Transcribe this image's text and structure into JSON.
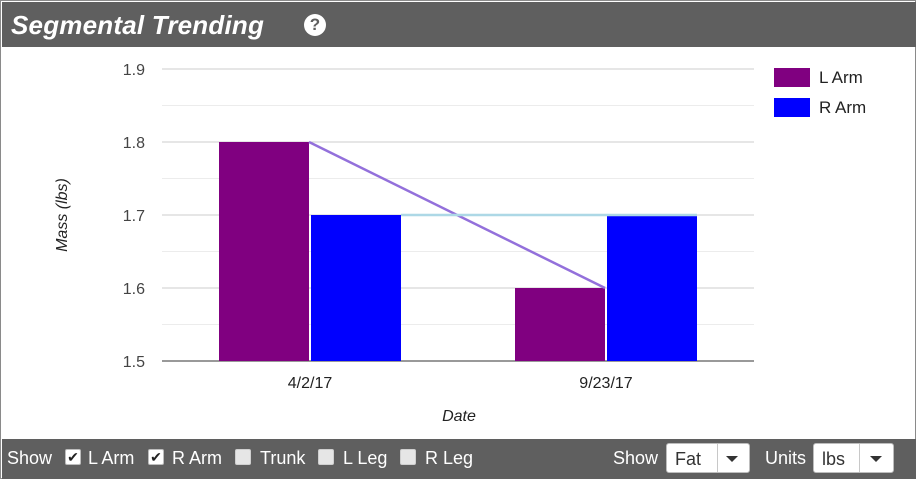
{
  "header": {
    "title": "Segmental Trending",
    "help_icon": "question-circle-icon"
  },
  "chart_data": {
    "type": "bar",
    "title": "",
    "xlabel": "Date",
    "ylabel": "Mass (lbs)",
    "categories": [
      "4/2/17",
      "9/23/17"
    ],
    "ylim": [
      1.5,
      1.9
    ],
    "yticks": [
      1.5,
      1.6,
      1.7,
      1.8,
      1.9
    ],
    "ytick_labels": [
      "1.5",
      "1.6",
      "1.7",
      "1.8",
      "1.9"
    ],
    "grid": true,
    "legend_position": "top-right",
    "series": [
      {
        "name": "L Arm",
        "values": [
          1.8,
          1.6
        ],
        "color": "#800080",
        "trend_color": "#9370db"
      },
      {
        "name": "R Arm",
        "values": [
          1.7,
          1.7
        ],
        "color": "#0000ff",
        "trend_color": "#add8e6"
      }
    ]
  },
  "footer": {
    "show_label": "Show",
    "segments": [
      {
        "label": "L Arm",
        "checked": true
      },
      {
        "label": "R Arm",
        "checked": true
      },
      {
        "label": "Trunk",
        "checked": false
      },
      {
        "label": "L Leg",
        "checked": false
      },
      {
        "label": "R Leg",
        "checked": false
      }
    ],
    "measure_label": "Show",
    "measure_value": "Fat",
    "units_label": "Units",
    "units_value": "lbs"
  },
  "colors": {
    "header_bg": "#5f5f5f",
    "footer_bg": "#5f5f5f"
  }
}
